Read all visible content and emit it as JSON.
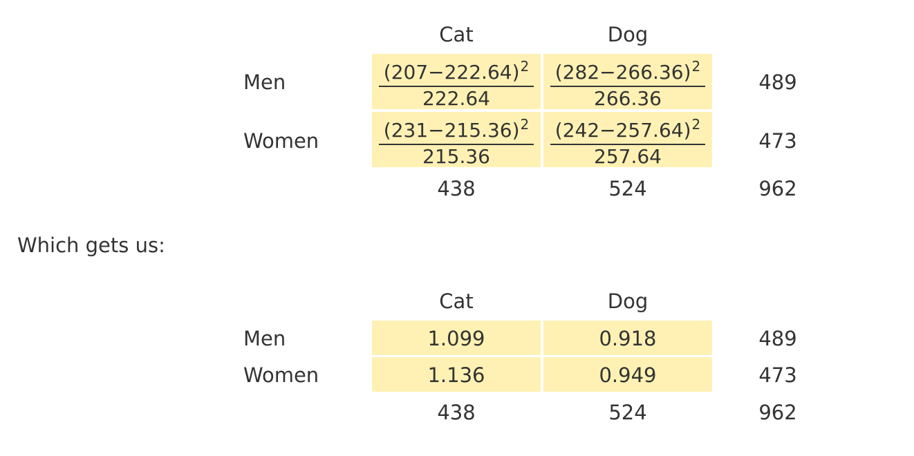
{
  "table1": {
    "col_headers": [
      "Cat",
      "Dog"
    ],
    "row_labels": [
      "Men",
      "Women"
    ],
    "cells": [
      [
        {
          "numerator": "(207−222.64)",
          "exponent": "2",
          "denominator": "222.64"
        },
        {
          "numerator": "(282−266.36)",
          "exponent": "2",
          "denominator": "266.36"
        }
      ],
      [
        {
          "numerator": "(231−215.36)",
          "exponent": "2",
          "denominator": "215.36"
        },
        {
          "numerator": "(242−257.64)",
          "exponent": "2",
          "denominator": "257.64"
        }
      ]
    ],
    "row_totals": [
      "489",
      "473"
    ],
    "col_totals": [
      "438",
      "524"
    ],
    "grand_total": "962"
  },
  "intro_text": "Which gets us:",
  "table2": {
    "col_headers": [
      "Cat",
      "Dog"
    ],
    "row_labels": [
      "Men",
      "Women"
    ],
    "cells": [
      [
        "1.099",
        "0.918"
      ],
      [
        "1.136",
        "0.949"
      ]
    ],
    "row_totals": [
      "489",
      "473"
    ],
    "col_totals": [
      "438",
      "524"
    ],
    "grand_total": "962"
  },
  "colors": {
    "cell_bg": "#fff1b4",
    "text": "#333333"
  }
}
